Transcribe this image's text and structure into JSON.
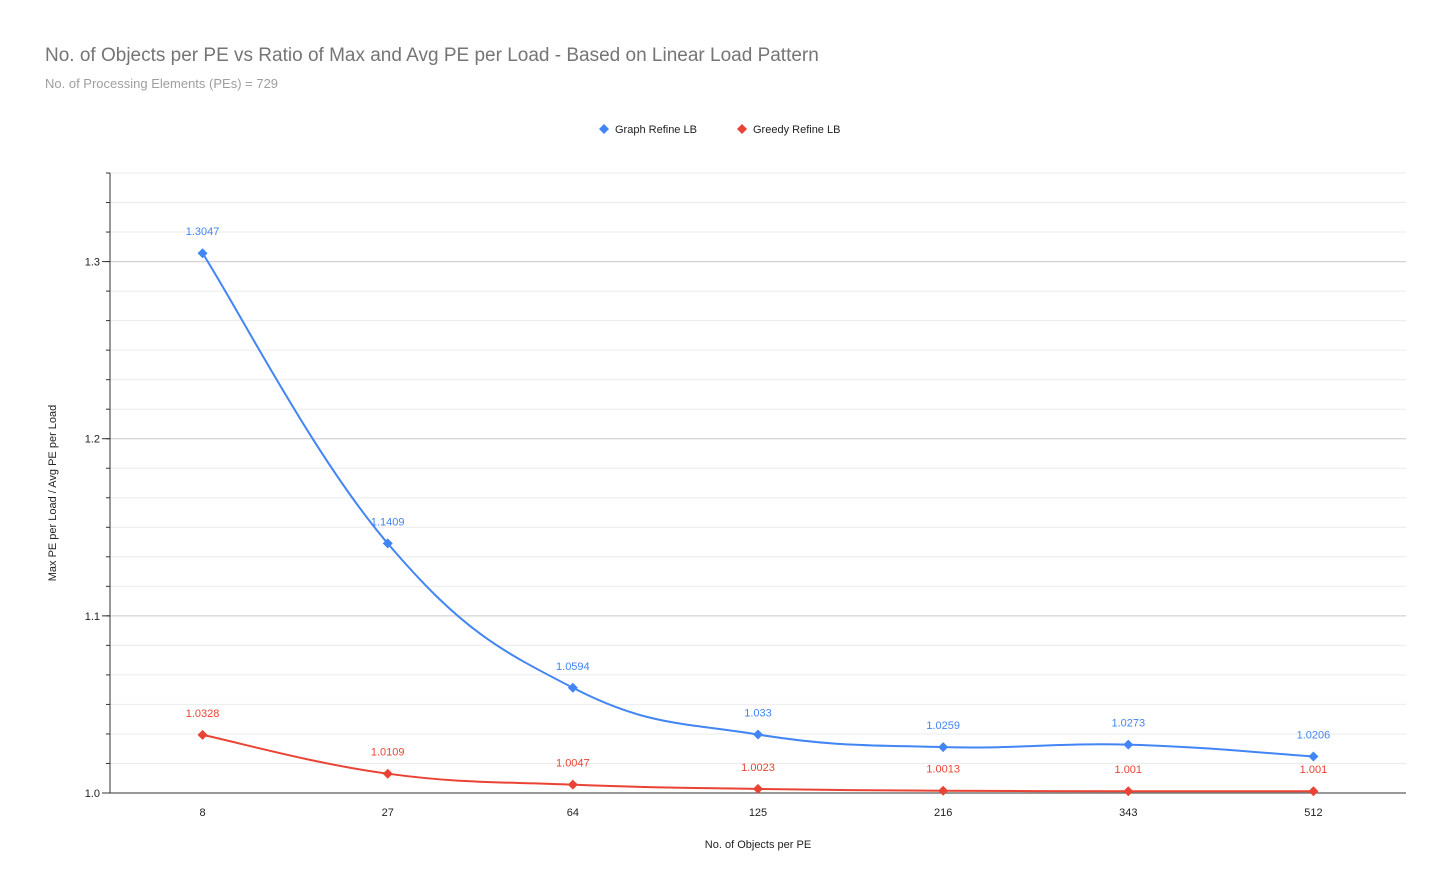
{
  "chart_data": {
    "type": "line",
    "title": "No. of Objects per PE vs Ratio of Max and Avg PE per Load - Based on Linear Load Pattern",
    "subtitle": "No. of Processing Elements (PEs) = 729",
    "xlabel": "No. of Objects per PE",
    "ylabel": "Max PE per Load / Avg PE per Load",
    "categories": [
      "8",
      "27",
      "64",
      "125",
      "216",
      "343",
      "512"
    ],
    "ylim": [
      1.0,
      1.35
    ],
    "yticks": [
      1.0,
      1.1,
      1.2,
      1.3
    ],
    "ytick_labels": [
      "1.0",
      "1.1",
      "1.2",
      "1.3"
    ],
    "grid": true,
    "legend_position": "top-center",
    "smooth": true,
    "series": [
      {
        "name": "Graph Refine LB",
        "color": "#4285f4",
        "values": [
          1.3047,
          1.1409,
          1.0594,
          1.033,
          1.0259,
          1.0273,
          1.0206
        ],
        "labels": [
          "1.3047",
          "1.1409",
          "1.0594",
          "1.033",
          "1.0259",
          "1.0273",
          "1.0206"
        ]
      },
      {
        "name": "Greedy Refine LB",
        "color": "#ea4335",
        "values": [
          1.0328,
          1.0109,
          1.0047,
          1.0023,
          1.0013,
          1.001,
          1.001
        ],
        "labels": [
          "1.0328",
          "1.0109",
          "1.0047",
          "1.0023",
          "1.0013",
          "1.001",
          "1.001"
        ]
      }
    ]
  }
}
